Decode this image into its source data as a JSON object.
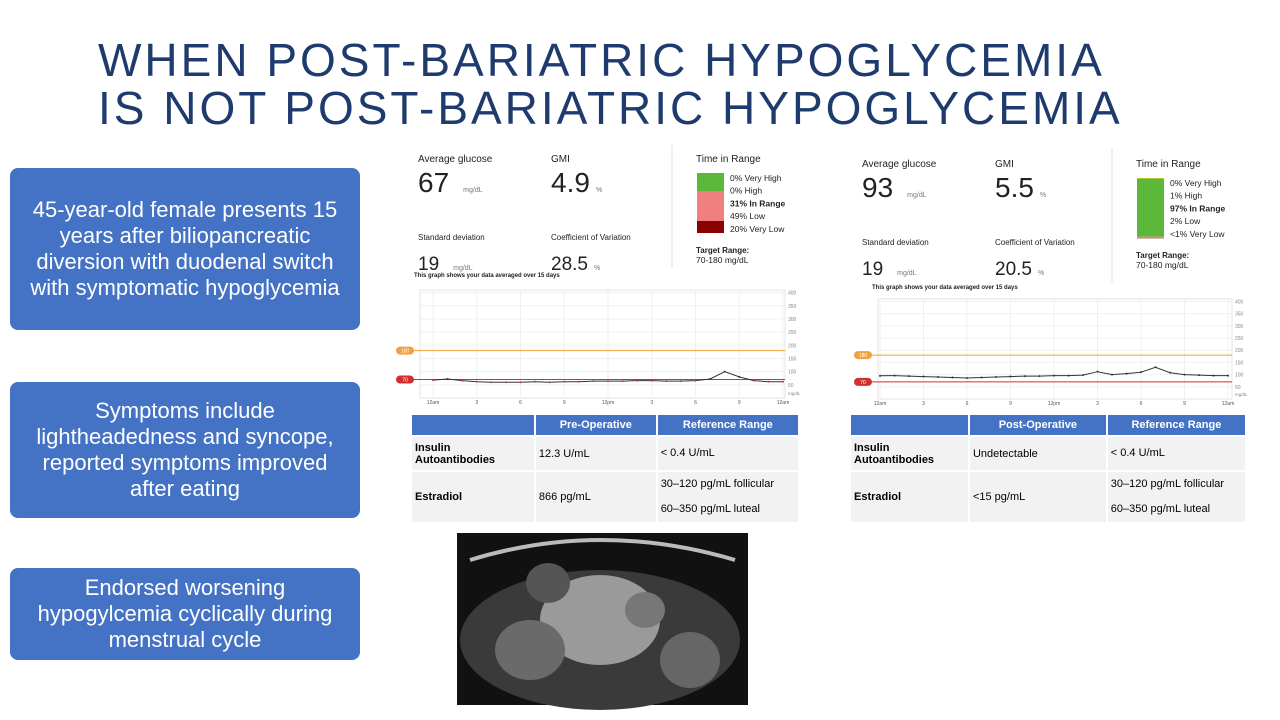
{
  "title": {
    "lines": [
      "WHEN POST-BARIATRIC HYPOGLYCEMIA",
      "IS NOT POST-BARIATRIC HYPOGLYCEMIA"
    ]
  },
  "callouts": [
    "45-year-old female presents 15 years after biliopancreatic diversion with duodenal switch with symptomatic hypoglycemia",
    "Symptoms include lightheadedness and syncope, reported symptoms improved after eating",
    "Endorsed worsening hypogylcemia cyclically during menstrual cycle"
  ],
  "reports": [
    {
      "metrics": [
        {
          "label": "Average glucose",
          "value": 67,
          "unit": "mg/dL"
        },
        {
          "label": "GMI",
          "value": 4.9,
          "unit": "%"
        },
        {
          "label": "Standard deviation",
          "value": 19,
          "unit": "mg/dL"
        },
        {
          "label": "Coefficient of Variation",
          "value": 28.5,
          "unit": "%"
        }
      ],
      "time_in_range": {
        "title": "Time in Range",
        "items": [
          {
            "label": "0% Very High",
            "value": 0,
            "color": "#f39c12"
          },
          {
            "label": "0% High",
            "value": 0,
            "color": "#f1c40f"
          },
          {
            "label": "31% In Range",
            "value": 31,
            "color": "#5cb83a"
          },
          {
            "label": "49% Low",
            "value": 49,
            "color": "#f08080"
          },
          {
            "label": "20% Very Low",
            "value": 20,
            "color": "#8b0000"
          }
        ],
        "target_label": "Target Range:",
        "target_value": "70-180 mg/dL"
      },
      "graph": {
        "caption": "This graph shows your data averaged over 15 days",
        "ylim": [
          0,
          410
        ],
        "yticks": [
          50,
          100,
          150,
          200,
          250,
          300,
          350,
          400
        ],
        "y_unit": "mg/dL",
        "xticks": [
          "12am",
          "3",
          "6",
          "9",
          "12pm",
          "3",
          "6",
          "9",
          "12am"
        ],
        "thresholds": [
          {
            "value": 180,
            "color": "#f0a040"
          },
          {
            "value": 70,
            "color": "#d03030"
          }
        ],
        "profile": [
          68,
          72,
          66,
          62,
          60,
          60,
          60,
          62,
          60,
          62,
          62,
          64,
          64,
          64,
          66,
          66,
          64,
          64,
          66,
          72,
          100,
          80,
          66,
          62,
          62
        ]
      }
    },
    {
      "metrics": [
        {
          "label": "Average glucose",
          "value": 93,
          "unit": "mg/dL"
        },
        {
          "label": "GMI",
          "value": 5.5,
          "unit": "%"
        },
        {
          "label": "Standard deviation",
          "value": 19,
          "unit": "mg/dL"
        },
        {
          "label": "Coefficient of Variation",
          "value": 20.5,
          "unit": "%"
        }
      ],
      "time_in_range": {
        "title": "Time in Range",
        "items": [
          {
            "label": "0% Very High",
            "value": 0,
            "color": "#f39c12"
          },
          {
            "label": "1% High",
            "value": 1,
            "color": "#f1c40f"
          },
          {
            "label": "97% In Range",
            "value": 97,
            "color": "#5cb83a"
          },
          {
            "label": "2% Low",
            "value": 2,
            "color": "#f08080"
          },
          {
            "label": "<1% Very Low",
            "value": 0.5,
            "color": "#8b0000"
          }
        ],
        "target_label": "Target Range:",
        "target_value": "70-180 mg/dL"
      },
      "graph": {
        "caption": "This graph shows your data averaged over 15 days",
        "ylim": [
          0,
          410
        ],
        "yticks": [
          50,
          100,
          150,
          200,
          250,
          300,
          350,
          400
        ],
        "y_unit": "mg/dL",
        "xticks": [
          "12am",
          "3",
          "6",
          "9",
          "12pm",
          "3",
          "6",
          "9",
          "12am"
        ],
        "thresholds": [
          {
            "value": 180,
            "color": "#f0a040"
          },
          {
            "value": 70,
            "color": "#d03030"
          }
        ],
        "profile": [
          95,
          96,
          94,
          92,
          90,
          88,
          86,
          88,
          90,
          92,
          94,
          94,
          96,
          96,
          98,
          112,
          100,
          104,
          110,
          130,
          108,
          100,
          98,
          96,
          96
        ]
      }
    }
  ],
  "tables": [
    {
      "header": [
        "Pre-Operative",
        "Reference Range"
      ],
      "rows": [
        [
          "Insulin Autoantibodies",
          "12.3 U/mL",
          [
            "< 0.4 U/mL"
          ]
        ],
        [
          "Estradiol",
          "866 pg/mL",
          [
            "30–120 pg/mL follicular",
            "60–350 pg/mL luteal"
          ]
        ]
      ]
    },
    {
      "header": [
        "Post-Operative",
        "Reference Range"
      ],
      "rows": [
        [
          "Insulin Autoantibodies",
          "Undetectable",
          [
            "< 0.4 U/mL"
          ]
        ],
        [
          "Estradiol",
          "<15 pg/mL",
          [
            "30–120 pg/mL follicular",
            "60–350 pg/mL luteal"
          ]
        ]
      ]
    }
  ]
}
